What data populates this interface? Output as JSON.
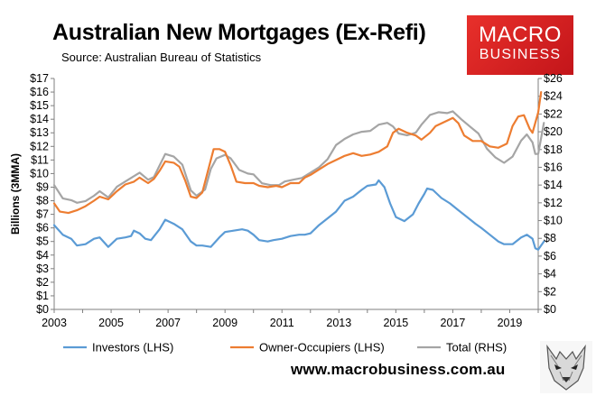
{
  "header": {
    "title": "Australian New Mortgages (Ex-Refi)",
    "subtitle": "Source: Australian Bureau of Statistics"
  },
  "logo": {
    "line1": "MACRO",
    "line2": "BUSINESS"
  },
  "footer": {
    "website": "www.macrobusiness.com.au"
  },
  "icons": {
    "brand": "wolf-head-icon"
  },
  "chart_data": {
    "type": "line",
    "title": "Australian New Mortgages (Ex-Refi)",
    "ylabel": "Billions (3MMA)",
    "xlim": [
      2003,
      2020
    ],
    "ylim_left": [
      0,
      17
    ],
    "ylim_right": [
      0,
      26
    ],
    "x_ticks": [
      "2003",
      "2005",
      "2007",
      "2009",
      "2011",
      "2013",
      "2015",
      "2017",
      "2019"
    ],
    "y_ticks_left": [
      "$0",
      "$1",
      "$2",
      "$3",
      "$4",
      "$5",
      "$6",
      "$7",
      "$8",
      "$9",
      "$10",
      "$11",
      "$12",
      "$13",
      "$14",
      "$15",
      "$16",
      "$17"
    ],
    "y_ticks_right": [
      "$0",
      "$2",
      "$4",
      "$6",
      "$8",
      "$10",
      "$12",
      "$14",
      "$16",
      "$18",
      "$20",
      "$22",
      "$24",
      "$26"
    ],
    "grid": false,
    "legend_position": "bottom",
    "series": [
      {
        "name": "Investors (LHS)",
        "axis": "left",
        "color": "#5b9bd5",
        "points": [
          [
            2003.0,
            6.2
          ],
          [
            2003.3,
            5.5
          ],
          [
            2003.6,
            5.2
          ],
          [
            2003.8,
            4.7
          ],
          [
            2004.1,
            4.8
          ],
          [
            2004.4,
            5.2
          ],
          [
            2004.6,
            5.3
          ],
          [
            2004.9,
            4.6
          ],
          [
            2005.2,
            5.2
          ],
          [
            2005.5,
            5.3
          ],
          [
            2005.7,
            5.4
          ],
          [
            2005.8,
            5.8
          ],
          [
            2006.0,
            5.6
          ],
          [
            2006.2,
            5.2
          ],
          [
            2006.4,
            5.1
          ],
          [
            2006.7,
            5.9
          ],
          [
            2006.9,
            6.6
          ],
          [
            2007.2,
            6.3
          ],
          [
            2007.5,
            5.9
          ],
          [
            2007.8,
            5.0
          ],
          [
            2008.0,
            4.7
          ],
          [
            2008.2,
            4.7
          ],
          [
            2008.5,
            4.6
          ],
          [
            2008.8,
            5.3
          ],
          [
            2009.0,
            5.7
          ],
          [
            2009.3,
            5.8
          ],
          [
            2009.6,
            5.9
          ],
          [
            2009.8,
            5.8
          ],
          [
            2010.0,
            5.5
          ],
          [
            2010.2,
            5.1
          ],
          [
            2010.5,
            5.0
          ],
          [
            2010.7,
            5.1
          ],
          [
            2011.0,
            5.2
          ],
          [
            2011.3,
            5.4
          ],
          [
            2011.6,
            5.5
          ],
          [
            2011.8,
            5.5
          ],
          [
            2012.0,
            5.6
          ],
          [
            2012.3,
            6.2
          ],
          [
            2012.6,
            6.7
          ],
          [
            2012.9,
            7.2
          ],
          [
            2013.2,
            8.0
          ],
          [
            2013.5,
            8.3
          ],
          [
            2013.8,
            8.8
          ],
          [
            2014.0,
            9.1
          ],
          [
            2014.3,
            9.2
          ],
          [
            2014.4,
            9.5
          ],
          [
            2014.6,
            9.0
          ],
          [
            2014.8,
            7.8
          ],
          [
            2015.0,
            6.8
          ],
          [
            2015.3,
            6.5
          ],
          [
            2015.6,
            7.0
          ],
          [
            2015.8,
            7.8
          ],
          [
            2016.0,
            8.5
          ],
          [
            2016.1,
            8.9
          ],
          [
            2016.3,
            8.8
          ],
          [
            2016.6,
            8.2
          ],
          [
            2016.9,
            7.8
          ],
          [
            2017.2,
            7.3
          ],
          [
            2017.5,
            6.8
          ],
          [
            2017.8,
            6.3
          ],
          [
            2018.0,
            6.0
          ],
          [
            2018.3,
            5.5
          ],
          [
            2018.6,
            5.0
          ],
          [
            2018.8,
            4.8
          ],
          [
            2019.1,
            4.8
          ],
          [
            2019.4,
            5.3
          ],
          [
            2019.6,
            5.5
          ],
          [
            2019.8,
            5.2
          ],
          [
            2019.9,
            4.5
          ],
          [
            2020.0,
            4.4
          ],
          [
            2020.2,
            5.0
          ]
        ]
      },
      {
        "name": "Owner-Occupiers (LHS)",
        "axis": "left",
        "color": "#ed7d31",
        "points": [
          [
            2003.0,
            7.8
          ],
          [
            2003.2,
            7.2
          ],
          [
            2003.5,
            7.1
          ],
          [
            2003.8,
            7.3
          ],
          [
            2004.1,
            7.6
          ],
          [
            2004.4,
            8.0
          ],
          [
            2004.6,
            8.3
          ],
          [
            2004.9,
            8.1
          ],
          [
            2005.2,
            8.7
          ],
          [
            2005.5,
            9.2
          ],
          [
            2005.8,
            9.4
          ],
          [
            2006.0,
            9.7
          ],
          [
            2006.3,
            9.3
          ],
          [
            2006.5,
            9.6
          ],
          [
            2006.7,
            10.2
          ],
          [
            2006.9,
            10.9
          ],
          [
            2007.2,
            10.8
          ],
          [
            2007.4,
            10.5
          ],
          [
            2007.6,
            9.5
          ],
          [
            2007.8,
            8.3
          ],
          [
            2008.0,
            8.2
          ],
          [
            2008.2,
            8.6
          ],
          [
            2008.4,
            10.2
          ],
          [
            2008.6,
            11.8
          ],
          [
            2008.8,
            11.8
          ],
          [
            2009.0,
            11.6
          ],
          [
            2009.2,
            10.6
          ],
          [
            2009.4,
            9.4
          ],
          [
            2009.7,
            9.3
          ],
          [
            2010.0,
            9.3
          ],
          [
            2010.2,
            9.1
          ],
          [
            2010.5,
            9.0
          ],
          [
            2010.8,
            9.1
          ],
          [
            2011.0,
            9.0
          ],
          [
            2011.3,
            9.3
          ],
          [
            2011.6,
            9.3
          ],
          [
            2011.8,
            9.7
          ],
          [
            2012.0,
            9.9
          ],
          [
            2012.3,
            10.3
          ],
          [
            2012.6,
            10.7
          ],
          [
            2012.9,
            11.0
          ],
          [
            2013.2,
            11.3
          ],
          [
            2013.5,
            11.5
          ],
          [
            2013.8,
            11.3
          ],
          [
            2014.1,
            11.4
          ],
          [
            2014.4,
            11.6
          ],
          [
            2014.7,
            12.0
          ],
          [
            2014.9,
            13.0
          ],
          [
            2015.1,
            13.3
          ],
          [
            2015.4,
            13.0
          ],
          [
            2015.7,
            12.8
          ],
          [
            2015.9,
            12.5
          ],
          [
            2016.2,
            13.0
          ],
          [
            2016.4,
            13.5
          ],
          [
            2016.7,
            13.8
          ],
          [
            2016.9,
            14.0
          ],
          [
            2017.0,
            14.1
          ],
          [
            2017.2,
            13.7
          ],
          [
            2017.4,
            12.8
          ],
          [
            2017.7,
            12.4
          ],
          [
            2018.0,
            12.4
          ],
          [
            2018.3,
            12.0
          ],
          [
            2018.6,
            11.9
          ],
          [
            2018.9,
            12.2
          ],
          [
            2019.1,
            13.5
          ],
          [
            2019.3,
            14.2
          ],
          [
            2019.5,
            14.3
          ],
          [
            2019.7,
            13.3
          ],
          [
            2019.8,
            13.0
          ],
          [
            2020.0,
            14.5
          ],
          [
            2020.1,
            16.0
          ]
        ]
      },
      {
        "name": "Total (RHS)",
        "axis": "right",
        "color": "#a5a5a5",
        "points": [
          [
            2003.0,
            14.0
          ],
          [
            2003.3,
            12.5
          ],
          [
            2003.6,
            12.3
          ],
          [
            2003.8,
            12.0
          ],
          [
            2004.1,
            12.2
          ],
          [
            2004.4,
            12.8
          ],
          [
            2004.6,
            13.3
          ],
          [
            2004.9,
            12.6
          ],
          [
            2005.2,
            13.8
          ],
          [
            2005.5,
            14.4
          ],
          [
            2005.8,
            15.0
          ],
          [
            2006.0,
            15.4
          ],
          [
            2006.3,
            14.6
          ],
          [
            2006.5,
            14.9
          ],
          [
            2006.7,
            16.2
          ],
          [
            2006.9,
            17.5
          ],
          [
            2007.2,
            17.2
          ],
          [
            2007.5,
            16.3
          ],
          [
            2007.8,
            13.4
          ],
          [
            2008.0,
            12.8
          ],
          [
            2008.3,
            13.5
          ],
          [
            2008.5,
            15.8
          ],
          [
            2008.7,
            17.0
          ],
          [
            2009.0,
            17.4
          ],
          [
            2009.2,
            17.0
          ],
          [
            2009.5,
            15.7
          ],
          [
            2009.8,
            15.3
          ],
          [
            2010.0,
            15.2
          ],
          [
            2010.3,
            14.2
          ],
          [
            2010.6,
            14.0
          ],
          [
            2010.9,
            14.0
          ],
          [
            2011.1,
            14.4
          ],
          [
            2011.4,
            14.6
          ],
          [
            2011.7,
            14.8
          ],
          [
            2012.0,
            15.4
          ],
          [
            2012.3,
            16.0
          ],
          [
            2012.6,
            16.9
          ],
          [
            2012.9,
            18.5
          ],
          [
            2013.2,
            19.2
          ],
          [
            2013.5,
            19.7
          ],
          [
            2013.8,
            20.0
          ],
          [
            2014.1,
            20.1
          ],
          [
            2014.4,
            20.8
          ],
          [
            2014.7,
            21.0
          ],
          [
            2014.9,
            20.6
          ],
          [
            2015.1,
            19.8
          ],
          [
            2015.4,
            19.6
          ],
          [
            2015.7,
            19.9
          ],
          [
            2015.9,
            20.8
          ],
          [
            2016.2,
            21.9
          ],
          [
            2016.5,
            22.2
          ],
          [
            2016.8,
            22.1
          ],
          [
            2017.0,
            22.3
          ],
          [
            2017.3,
            21.4
          ],
          [
            2017.6,
            20.6
          ],
          [
            2017.9,
            19.8
          ],
          [
            2018.2,
            18.1
          ],
          [
            2018.5,
            17.1
          ],
          [
            2018.8,
            16.5
          ],
          [
            2019.1,
            17.2
          ],
          [
            2019.4,
            19.0
          ],
          [
            2019.6,
            19.7
          ],
          [
            2019.8,
            18.8
          ],
          [
            2019.9,
            17.5
          ],
          [
            2020.0,
            17.5
          ],
          [
            2020.2,
            21.0
          ]
        ]
      }
    ]
  }
}
